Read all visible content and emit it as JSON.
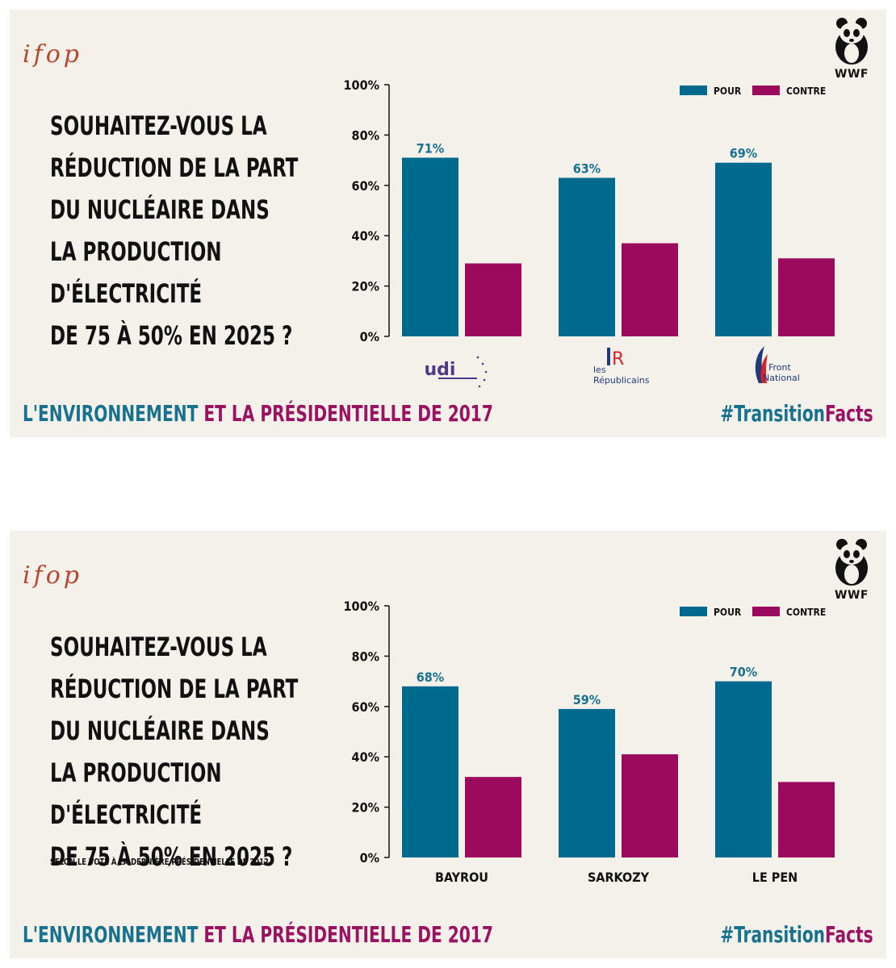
{
  "colors": {
    "pour": "#006a8e",
    "contre": "#9c0a5e",
    "teal": "#17718f",
    "magenta": "#9c1262",
    "panel_bg": "#f4f1ea"
  },
  "panels": [
    {
      "brand": "ifop",
      "wwf": "WWF",
      "question": [
        "SOUHAITEZ-VOUS LA",
        "RÉDUCTION DE LA PART",
        "DU NUCLÉAIRE DANS",
        "LA PRODUCTION",
        "D'ÉLECTRICITÉ",
        "DE 75 À 50% EN 2025 ?"
      ],
      "subnote": "",
      "tagline_a": "L'ENVIRONNEMENT",
      "tagline_b": " ET LA PRÉSIDENTIELLE DE 2017",
      "hashtag_a": "#Transition",
      "hashtag_b": "Facts",
      "logos": {
        "udi": "udi",
        "lr_les": "les",
        "lr_name": "Républicains",
        "fn_a": "Front",
        "fn_b": "National"
      }
    },
    {
      "brand": "ifop",
      "wwf": "WWF",
      "question": [
        "SOUHAITEZ-VOUS LA",
        "RÉDUCTION DE LA PART",
        "DU NUCLÉAIRE DANS",
        "LA PRODUCTION",
        "D'ÉLECTRICITÉ",
        "DE 75 À 50% EN 2025 ?"
      ],
      "subnote": "SELON LE VOTE À LA DERNIÈRE PRÉSIDENTIELLE DE 2012",
      "tagline_a": "L'ENVIRONNEMENT",
      "tagline_b": " ET LA PRÉSIDENTIELLE DE 2017",
      "hashtag_a": "#Transition",
      "hashtag_b": "Facts"
    }
  ],
  "chart_data": [
    {
      "type": "bar",
      "categories": [
        "UDI",
        "Les Républicains",
        "Front National"
      ],
      "series": [
        {
          "name": "POUR",
          "values": [
            71,
            63,
            69
          ]
        },
        {
          "name": "CONTRE",
          "values": [
            29,
            37,
            31
          ]
        }
      ],
      "value_labels": [
        "71%",
        "63%",
        "69%"
      ],
      "ylim": [
        0,
        100
      ],
      "yticks": [
        "0%",
        "20%",
        "40%",
        "60%",
        "80%",
        "100%"
      ],
      "legend": "top-right"
    },
    {
      "type": "bar",
      "categories": [
        "BAYROU",
        "SARKOZY",
        "LE PEN"
      ],
      "series": [
        {
          "name": "POUR",
          "values": [
            68,
            59,
            70
          ]
        },
        {
          "name": "CONTRE",
          "values": [
            32,
            41,
            30
          ]
        }
      ],
      "value_labels": [
        "68%",
        "59%",
        "70%"
      ],
      "ylim": [
        0,
        100
      ],
      "yticks": [
        "0%",
        "20%",
        "40%",
        "60%",
        "80%",
        "100%"
      ],
      "legend": "top-right"
    }
  ]
}
